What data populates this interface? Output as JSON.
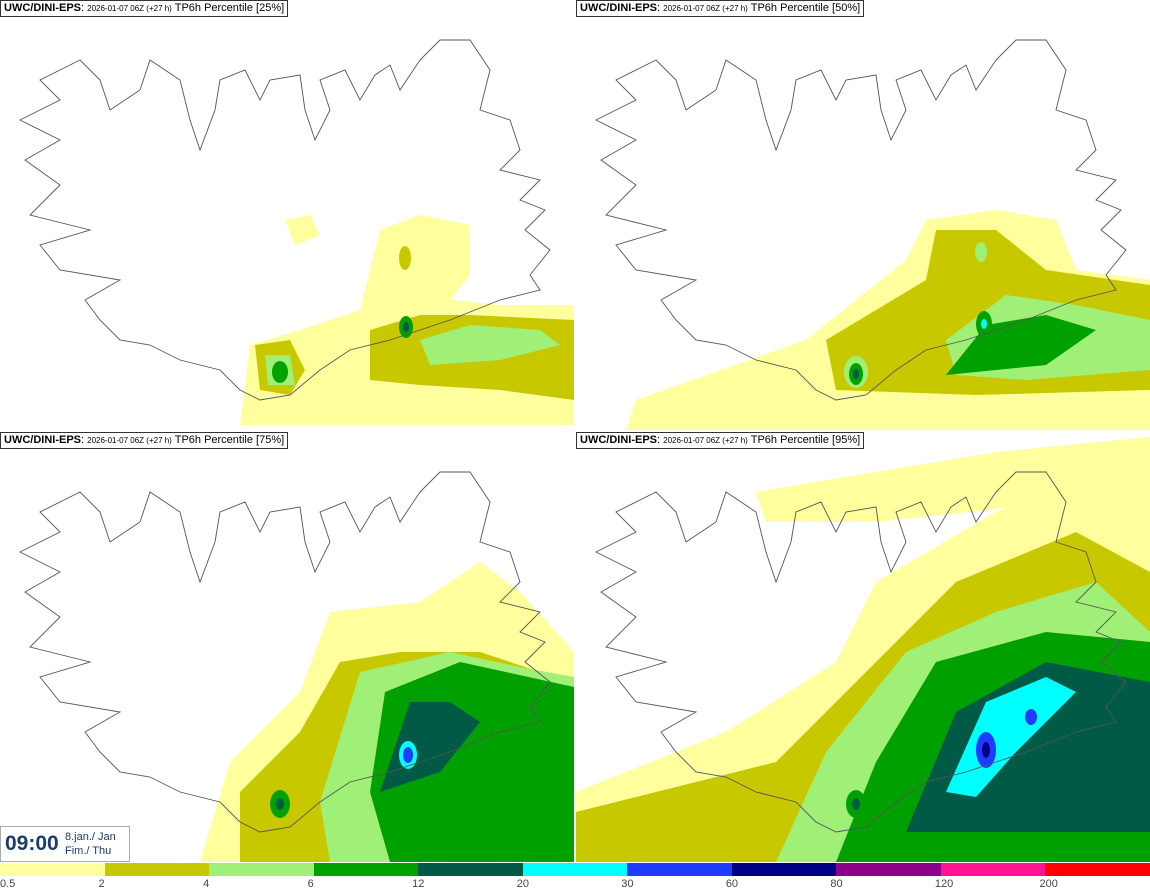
{
  "panels": [
    {
      "model": "UWC/DINI-EPS",
      "run": "2026-01-07 06Z (+27 h)",
      "param": "TP6h Percentile [25%]"
    },
    {
      "model": "UWC/DINI-EPS",
      "run": "2026-01-07 06Z (+27 h)",
      "param": "TP6h Percentile [50%]"
    },
    {
      "model": "UWC/DINI-EPS",
      "run": "2026-01-07 06Z (+27 h)",
      "param": "TP6h Percentile [75%]"
    },
    {
      "model": "UWC/DINI-EPS",
      "run": "2026-01-07 06Z (+27 h)",
      "param": "TP6h Percentile [95%]"
    }
  ],
  "valid_time": {
    "time": "09:00",
    "date": "8.jan./ Jan",
    "day": "Fim./ Thu"
  },
  "legend": {
    "labels": [
      "0.5",
      "2",
      "4",
      "6",
      "12",
      "20",
      "30",
      "60",
      "80",
      "120",
      "200"
    ],
    "colors": [
      "#ffff9e",
      "#c8c800",
      "#a0f078",
      "#00a000",
      "#005a46",
      "#00ffff",
      "#1e3cff",
      "#000082",
      "#8c008c",
      "#ff1493",
      "#ff0000"
    ]
  }
}
